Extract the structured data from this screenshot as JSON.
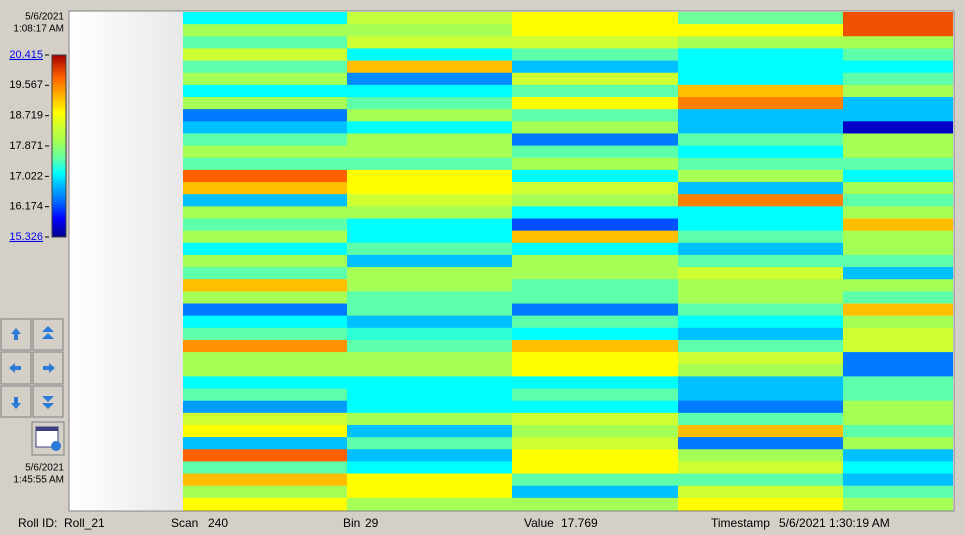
{
  "chart_data": {
    "type": "heatmap",
    "start_time": {
      "date": "5/6/2021",
      "time": "1:08:17 AM"
    },
    "end_time": {
      "date": "5/6/2021",
      "time": "1:45:55 AM"
    },
    "zlim": [
      15.326,
      20.415
    ],
    "zticks": [
      20.415,
      19.567,
      18.719,
      17.871,
      17.022,
      16.174,
      15.326
    ],
    "columns": [
      [
        17.1,
        18.0,
        17.5,
        18.4,
        17.5,
        18.0,
        17.1,
        18.0,
        16.4,
        16.8,
        17.5,
        18.0,
        17.5,
        19.8,
        19.2,
        16.8,
        18.0,
        17.5,
        18.0,
        17.1,
        18.0,
        17.5,
        19.2,
        18.0,
        16.4,
        17.1,
        17.5,
        19.5,
        18.0,
        18.0,
        17.1,
        17.5,
        16.6,
        18.4,
        18.8,
        16.8,
        19.8,
        17.5,
        19.2,
        18.0,
        18.8
      ],
      [
        18.3,
        18.0,
        18.4,
        17.1,
        19.2,
        16.5,
        17.1,
        17.5,
        18.0,
        17.1,
        18.0,
        18.0,
        17.5,
        18.8,
        18.8,
        18.4,
        18.0,
        17.1,
        17.1,
        17.5,
        16.8,
        18.0,
        18.0,
        17.5,
        17.5,
        16.8,
        17.3,
        17.5,
        18.0,
        18.0,
        17.1,
        17.1,
        17.1,
        18.0,
        16.8,
        17.5,
        16.8,
        17.1,
        18.8,
        18.8,
        18.0
      ],
      [
        18.8,
        18.8,
        18.4,
        17.5,
        16.8,
        18.4,
        17.5,
        18.8,
        17.5,
        18.0,
        16.4,
        17.5,
        18.0,
        17.1,
        18.4,
        18.0,
        17.1,
        16.2,
        19.2,
        17.1,
        18.0,
        18.0,
        17.5,
        17.5,
        16.4,
        17.5,
        17.1,
        19.2,
        18.8,
        18.8,
        17.1,
        17.5,
        17.1,
        18.4,
        18.0,
        18.4,
        18.8,
        18.8,
        17.5,
        16.8,
        18.0
      ],
      [
        17.6,
        18.8,
        18.0,
        17.1,
        17.1,
        17.1,
        19.2,
        19.6,
        16.8,
        16.8,
        17.5,
        17.1,
        17.5,
        18.0,
        16.8,
        19.6,
        17.1,
        17.1,
        17.5,
        16.8,
        17.5,
        18.4,
        18.0,
        18.0,
        17.5,
        17.1,
        16.8,
        17.5,
        18.4,
        18.0,
        16.8,
        16.8,
        16.4,
        17.5,
        19.2,
        16.4,
        18.0,
        18.4,
        17.5,
        18.4,
        18.8
      ],
      [
        19.9,
        19.9,
        18.0,
        17.5,
        17.1,
        17.5,
        18.0,
        16.8,
        16.8,
        15.6,
        18.0,
        18.0,
        17.5,
        17.1,
        18.0,
        17.5,
        18.0,
        19.2,
        18.0,
        18.0,
        17.5,
        16.8,
        18.0,
        17.5,
        19.2,
        18.0,
        18.4,
        18.4,
        16.4,
        16.4,
        17.5,
        17.5,
        18.0,
        18.0,
        17.5,
        18.0,
        16.8,
        17.1,
        16.8,
        17.5,
        18.0
      ]
    ]
  },
  "status_bar": [
    {
      "label": "Roll ID:",
      "value": "Roll_21"
    },
    {
      "label": "Scan",
      "value": 240
    },
    {
      "label": "Bin",
      "value": 29
    },
    {
      "label": "Value",
      "value": 17.769
    },
    {
      "label": "Timestamp",
      "value": "5/6/2021 1:30:19 AM"
    }
  ]
}
